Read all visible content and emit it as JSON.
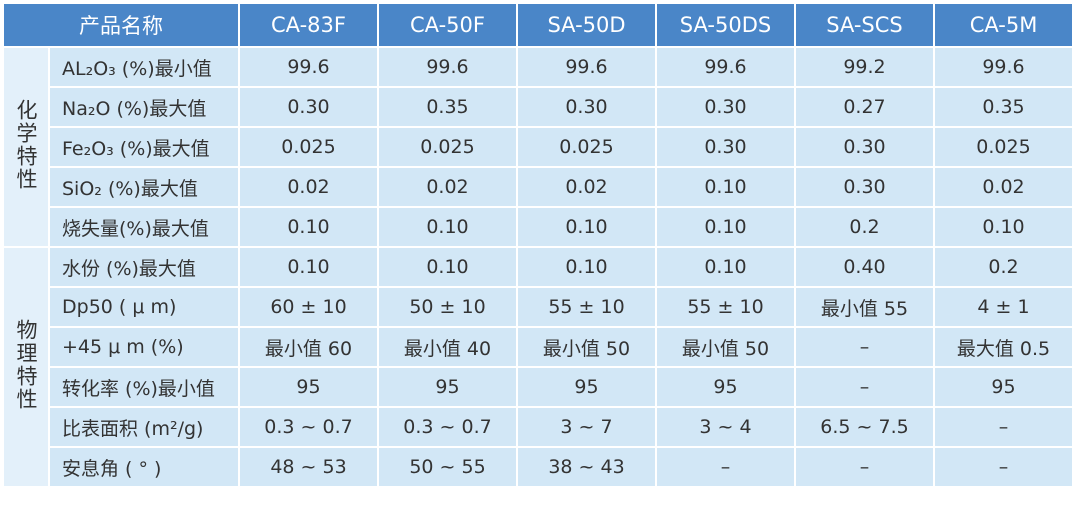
{
  "table": {
    "header": [
      "产品名称",
      "CA-83F",
      "CA-50F",
      "SA-50D",
      "SA-50DS",
      "SA-SCS",
      "CA-5M"
    ],
    "groups": [
      {
        "label": "化学特性",
        "rows": [
          [
            "AL₂O₃ (%)最小值",
            "99.6",
            "99.6",
            "99.6",
            "99.6",
            "99.2",
            "99.6"
          ],
          [
            "Na₂O (%)最大值",
            "0.30",
            "0.35",
            "0.30",
            "0.30",
            "0.27",
            "0.35"
          ],
          [
            "Fe₂O₃ (%)最大值",
            "0.025",
            "0.025",
            "0.025",
            "0.30",
            "0.30",
            "0.025"
          ],
          [
            "SiO₂ (%)最大值",
            "0.02",
            "0.02",
            "0.02",
            "0.10",
            "0.30",
            "0.02"
          ],
          [
            "烧失量(%)最大值",
            "0.10",
            "0.10",
            "0.10",
            "0.10",
            "0.2",
            "0.10"
          ]
        ]
      },
      {
        "label": "物理特性",
        "rows": [
          [
            "水份 (%)最大值",
            "0.10",
            "0.10",
            "0.10",
            "0.10",
            "0.40",
            "0.2"
          ],
          [
            "Dp50 ( μ m)",
            "60 ± 10",
            "50 ± 10",
            "55 ± 10",
            "55 ± 10",
            "最小值 55",
            "4 ± 1"
          ],
          [
            "+45 μ m (%)",
            "最小值 60",
            "最小值 40",
            "最小值 50",
            "最小值 50",
            "–",
            "最大值 0.5"
          ],
          [
            "转化率 (%)最小值",
            "95",
            "95",
            "95",
            "95",
            "–",
            "95"
          ],
          [
            "比表面积 (m²/g)",
            "0.3 ~ 0.7",
            "0.3 ~ 0.7",
            "3 ~ 7",
            "3 ~ 4",
            "6.5 ~ 7.5",
            "–"
          ],
          [
            "安息角 ( ° )",
            "48 ~ 53",
            "50 ~ 55",
            "38 ~ 43",
            "–",
            "–",
            "–"
          ]
        ]
      }
    ]
  }
}
